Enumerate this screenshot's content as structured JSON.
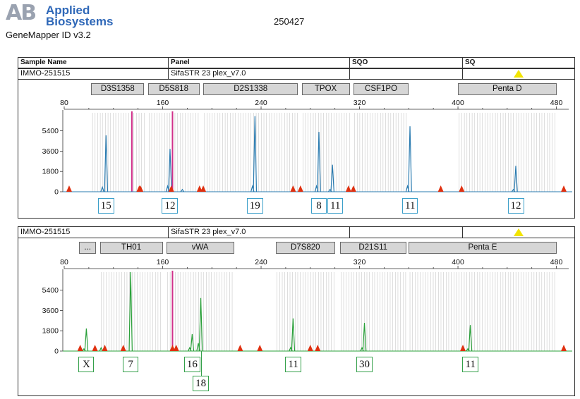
{
  "header": {
    "logo_mark": "AB",
    "logo_line1": "Applied",
    "logo_line2": "Biosystems",
    "software": "GeneMapper ID v3.2",
    "doc_number": "250427"
  },
  "table": {
    "columns": [
      "Sample Name",
      "Panel",
      "SQO",
      "SQ"
    ]
  },
  "colors": {
    "blue_trace": "#2a7bb0",
    "green_trace": "#2aa03a",
    "size_peak": "#e03010",
    "magenta_line": "#d0308a",
    "bin_lines": "#c8c8c8",
    "warning": "#f2e400"
  },
  "panels": [
    {
      "sample_name": "IMMO-251515",
      "panel_name": "SifaSTR 23 plex_v7.0",
      "sqo": "",
      "sq": "warning",
      "markers": [
        {
          "label": "D3S1358",
          "start": 102,
          "end": 145
        },
        {
          "label": "D5S818",
          "start": 148,
          "end": 190
        },
        {
          "label": "D2S1338",
          "start": 193,
          "end": 270
        },
        {
          "label": "TPOX",
          "start": 273,
          "end": 312
        },
        {
          "label": "CSF1PO",
          "start": 315,
          "end": 360
        },
        {
          "label": "Penta D",
          "start": 400,
          "end": 480
        }
      ],
      "trace_color": "blue",
      "x_ticks": [
        "80",
        "160",
        "240",
        "320",
        "400",
        "480"
      ],
      "y_ticks": [
        "0",
        "1800",
        "3600",
        "5400"
      ],
      "magenta_lines": [
        135,
        168
      ],
      "size_peaks": [
        84,
        141,
        142,
        167,
        190,
        193,
        266,
        272,
        311,
        315,
        386,
        403,
        486
      ],
      "peaks": [
        {
          "x": 114,
          "h": 5000,
          "label": "15"
        },
        {
          "x": 166,
          "h": 3800,
          "label": "12"
        },
        {
          "x": 235,
          "h": 6700,
          "label": "19"
        },
        {
          "x": 287,
          "h": 5300,
          "label": "8"
        },
        {
          "x": 298,
          "h": 2400,
          "label": "11"
        },
        {
          "x": 361,
          "h": 5800,
          "label": "11"
        },
        {
          "x": 447,
          "h": 2300,
          "label": "12"
        }
      ],
      "minor_peaks": [
        {
          "x": 111,
          "h": 400
        },
        {
          "x": 164,
          "h": 500
        },
        {
          "x": 176,
          "h": 200
        },
        {
          "x": 233,
          "h": 500
        },
        {
          "x": 285,
          "h": 500
        },
        {
          "x": 296,
          "h": 200
        },
        {
          "x": 359,
          "h": 500
        },
        {
          "x": 445,
          "h": 200
        }
      ]
    },
    {
      "sample_name": "IMMO-251515",
      "panel_name": "SifaSTR 23 plex_v7.0",
      "sqo": "",
      "sq": "warning",
      "markers": [
        {
          "label": "...",
          "start": 92,
          "end": 106
        },
        {
          "label": "TH01",
          "start": 109,
          "end": 160
        },
        {
          "label": "vWA",
          "start": 163,
          "end": 218
        },
        {
          "label": "D7S820",
          "start": 252,
          "end": 300
        },
        {
          "label": "D21S11",
          "start": 304,
          "end": 358
        },
        {
          "label": "Penta E",
          "start": 360,
          "end": 480
        }
      ],
      "trace_color": "green",
      "x_ticks": [
        "80",
        "160",
        "240",
        "320",
        "400",
        "480"
      ],
      "y_ticks": [
        "0",
        "1800",
        "3600",
        "5400"
      ],
      "magenta_lines": [
        168
      ],
      "size_peaks": [
        93,
        105,
        113,
        128,
        168,
        171,
        223,
        239,
        280,
        286,
        404,
        486
      ],
      "peaks": [
        {
          "x": 98,
          "h": 2000,
          "label": "X"
        },
        {
          "x": 134,
          "h": 7000,
          "label": "7"
        },
        {
          "x": 184,
          "h": 1500,
          "label": "16"
        },
        {
          "x": 191,
          "h": 4700,
          "label": "18"
        },
        {
          "x": 266,
          "h": 2900,
          "label": "11"
        },
        {
          "x": 324,
          "h": 2500,
          "label": "30"
        },
        {
          "x": 410,
          "h": 2300,
          "label": "11"
        }
      ],
      "minor_peaks": [
        {
          "x": 96,
          "h": 200
        },
        {
          "x": 110,
          "h": 300
        },
        {
          "x": 182,
          "h": 300
        },
        {
          "x": 189,
          "h": 700
        },
        {
          "x": 264,
          "h": 300
        },
        {
          "x": 322,
          "h": 300
        },
        {
          "x": 408,
          "h": 200
        }
      ]
    }
  ]
}
